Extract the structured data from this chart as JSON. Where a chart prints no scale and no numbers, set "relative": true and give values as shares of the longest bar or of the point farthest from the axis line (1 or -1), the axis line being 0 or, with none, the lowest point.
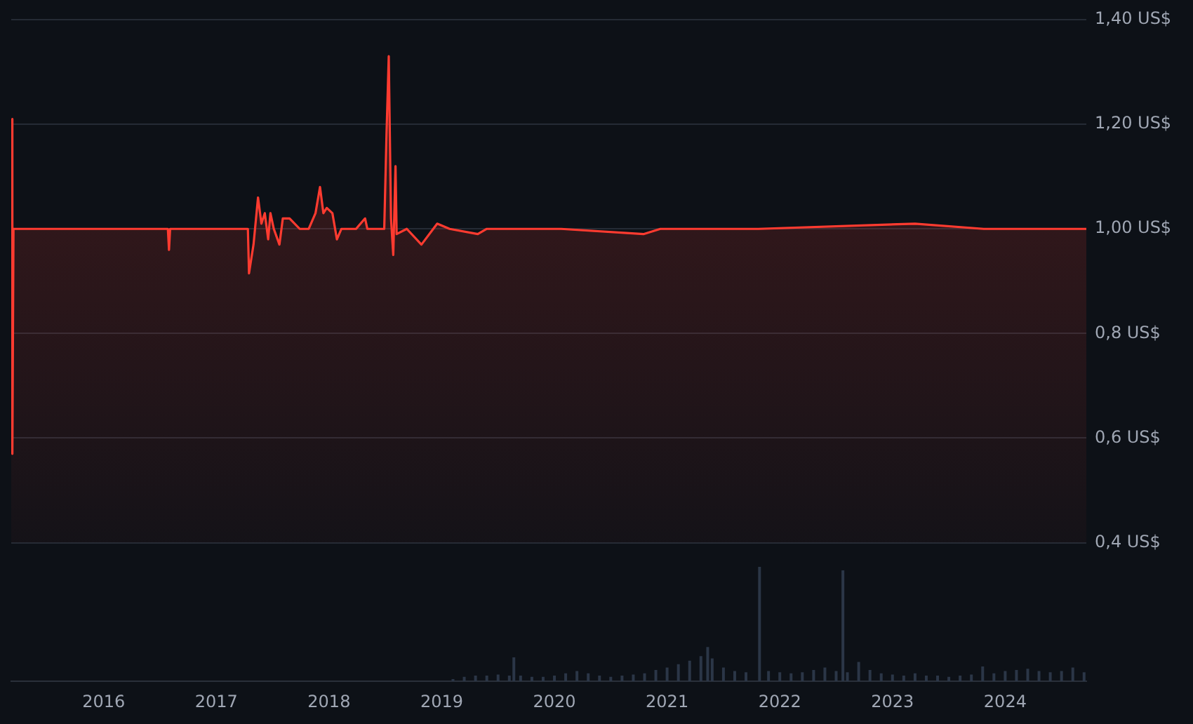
{
  "chart_data": [
    {
      "type": "area",
      "x": [
        2015.18,
        2015.19,
        2015.2,
        2016.57,
        2016.58,
        2016.59,
        2017.28,
        2017.29,
        2017.33,
        2017.37,
        2017.4,
        2017.43,
        2017.46,
        2017.48,
        2017.51,
        2017.56,
        2017.59,
        2017.65,
        2017.74,
        2017.82,
        2017.88,
        2017.92,
        2017.95,
        2017.98,
        2018.03,
        2018.07,
        2018.11,
        2018.24,
        2018.32,
        2018.34,
        2018.49,
        2018.51,
        2018.53,
        2018.55,
        2018.57,
        2018.59,
        2018.6,
        2018.69,
        2018.82,
        2018.96,
        2019.07,
        2019.32,
        2019.4,
        2020.06,
        2020.79,
        2020.94,
        2021.31,
        2021.81,
        2023.2,
        2023.81,
        2024.72
      ],
      "series": [
        {
          "color": "#ff3b30",
          "values": [
            1.21,
            0.57,
            1.0,
            1.0,
            0.96,
            1.0,
            1.0,
            0.915,
            0.97,
            1.06,
            1.01,
            1.03,
            0.98,
            1.03,
            1.0,
            0.97,
            1.02,
            1.02,
            1.0,
            1.0,
            1.03,
            1.08,
            1.03,
            1.04,
            1.03,
            0.98,
            1.0,
            1.0,
            1.02,
            1.0,
            1.0,
            1.18,
            1.33,
            1.02,
            0.95,
            1.12,
            0.99,
            1.0,
            0.97,
            1.01,
            1.0,
            0.99,
            1.0,
            1.0,
            0.99,
            1.0,
            1.0,
            1.0,
            1.01,
            1.0,
            1.0
          ]
        }
      ],
      "xlim": [
        2015.18,
        2024.72
      ],
      "xticks": [
        2016,
        2017,
        2018,
        2019,
        2020,
        2021,
        2022,
        2023,
        2024
      ],
      "ylim": [
        0.4,
        1.4
      ],
      "yticks": [
        {
          "value": 0.4,
          "label": "0,4 US$"
        },
        {
          "value": 0.6,
          "label": "0,6 US$"
        },
        {
          "value": 0.8,
          "label": "0,8 US$"
        },
        {
          "value": 1.0,
          "label": "1,00 US$"
        },
        {
          "value": 1.2,
          "label": "1,20 US$"
        },
        {
          "value": 1.4,
          "label": "1,40 US$"
        }
      ],
      "grid": "y",
      "legend": false,
      "tick_labels": "y"
    },
    {
      "type": "bar",
      "relative": true,
      "x": [
        2019.1,
        2019.2,
        2019.3,
        2019.4,
        2019.5,
        2019.6,
        2019.64,
        2019.7,
        2019.8,
        2019.9,
        2020.0,
        2020.1,
        2020.2,
        2020.3,
        2020.4,
        2020.5,
        2020.6,
        2020.7,
        2020.8,
        2020.9,
        2021.0,
        2021.1,
        2021.2,
        2021.3,
        2021.36,
        2021.4,
        2021.5,
        2021.6,
        2021.7,
        2021.82,
        2021.9,
        2022.0,
        2022.1,
        2022.2,
        2022.3,
        2022.4,
        2022.5,
        2022.56,
        2022.6,
        2022.7,
        2022.8,
        2022.9,
        2023.0,
        2023.1,
        2023.2,
        2023.3,
        2023.4,
        2023.5,
        2023.6,
        2023.7,
        2023.8,
        2023.9,
        2024.0,
        2024.1,
        2024.2,
        2024.3,
        2024.4,
        2024.5,
        2024.6,
        2024.7
      ],
      "series": [
        {
          "color": "#2b3647",
          "values": [
            0.02,
            0.04,
            0.05,
            0.05,
            0.06,
            0.05,
            0.21,
            0.05,
            0.04,
            0.04,
            0.05,
            0.07,
            0.09,
            0.07,
            0.05,
            0.04,
            0.05,
            0.06,
            0.07,
            0.1,
            0.12,
            0.15,
            0.18,
            0.22,
            0.3,
            0.2,
            0.12,
            0.09,
            0.08,
            1,
            0.09,
            0.08,
            0.07,
            0.08,
            0.1,
            0.12,
            0.09,
            0.97,
            0.08,
            0.17,
            0.1,
            0.07,
            0.06,
            0.05,
            0.07,
            0.05,
            0.05,
            0.04,
            0.05,
            0.06,
            0.13,
            0.07,
            0.09,
            0.1,
            0.11,
            0.09,
            0.08,
            0.09,
            0.12,
            0.08
          ]
        }
      ],
      "xlim": [
        2015.18,
        2024.72
      ],
      "xticks": [
        2016,
        2017,
        2018,
        2019,
        2020,
        2021,
        2022,
        2023,
        2024
      ],
      "legend": false,
      "tick_labels": "x"
    }
  ]
}
